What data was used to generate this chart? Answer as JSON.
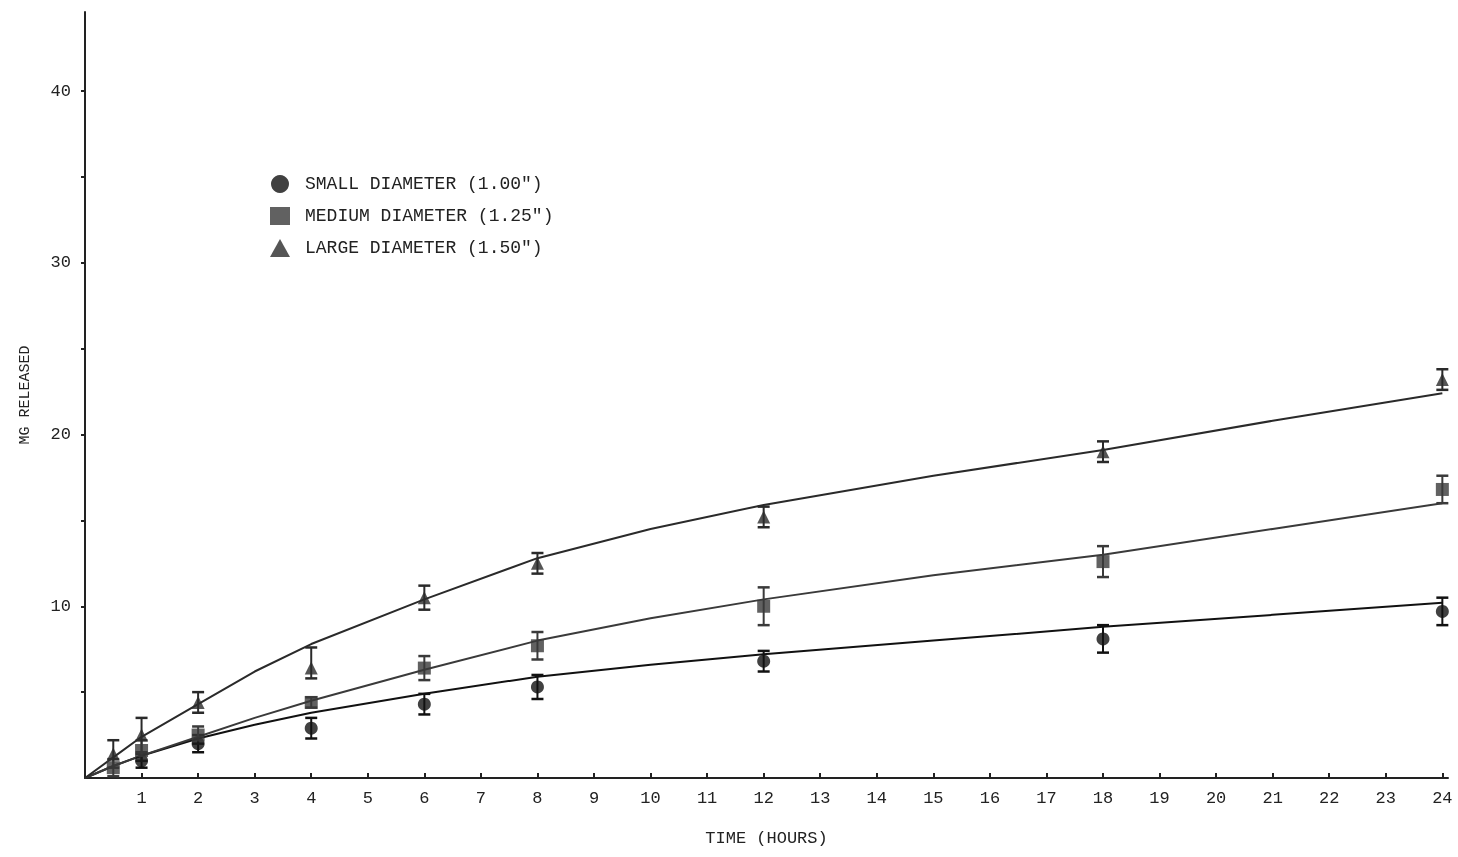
{
  "chart_data": {
    "type": "scatter",
    "xlabel": "TIME (HOURS)",
    "ylabel": "MG RELEASED",
    "x": [
      0.5,
      1,
      2,
      4,
      6,
      8,
      12,
      18,
      24
    ],
    "series": [
      {
        "name": "SMALL DIAMETER (1.00\")",
        "color": "#111111",
        "marker": "circle",
        "values": [
          null,
          1.0,
          2.0,
          2.9,
          4.3,
          5.3,
          6.8,
          8.1,
          9.7
        ],
        "errors": [
          null,
          0.4,
          0.5,
          0.6,
          0.6,
          0.7,
          0.6,
          0.8,
          0.8
        ]
      },
      {
        "name": "MEDIUM DIAMETER (1.25\")",
        "color": "#3a3a3a",
        "marker": "square",
        "values": [
          0.6,
          1.6,
          2.5,
          4.4,
          6.4,
          7.7,
          10.0,
          12.6,
          16.8
        ],
        "errors": [
          0.5,
          0.6,
          0.5,
          0.3,
          0.7,
          0.8,
          1.1,
          0.9,
          0.8
        ]
      },
      {
        "name": "LARGE DIAMETER (1.50\")",
        "color": "#2a2a2a",
        "marker": "triangle",
        "values": [
          1.4,
          2.5,
          4.4,
          6.4,
          10.5,
          12.5,
          15.2,
          19.0,
          23.2
        ],
        "errors": [
          0.8,
          1.0,
          0.6,
          [
            5.8,
            7.6
          ],
          0.7,
          0.6,
          0.6,
          0.6,
          0.6
        ]
      },
      {
        "type": "line",
        "color": "#111111",
        "marker": "none",
        "x": [
          0,
          0.5,
          1,
          2,
          3,
          4,
          6,
          8,
          10,
          12,
          15,
          18,
          21,
          24
        ],
        "values": [
          0,
          0.7,
          1.3,
          2.3,
          3.1,
          3.8,
          4.9,
          5.9,
          6.6,
          7.2,
          8.0,
          8.8,
          9.5,
          10.2
        ]
      },
      {
        "type": "line",
        "color": "#3a3a3a",
        "marker": "none",
        "x": [
          0,
          0.5,
          1,
          2,
          3,
          4,
          6,
          8,
          10,
          12,
          15,
          18,
          21,
          24
        ],
        "values": [
          0,
          0.7,
          1.3,
          2.4,
          3.5,
          4.5,
          6.3,
          8.0,
          9.3,
          10.4,
          11.8,
          13.0,
          14.5,
          16.0
        ]
      },
      {
        "type": "line",
        "color": "#2a2a2a",
        "marker": "none",
        "x": [
          0,
          0.5,
          1,
          2,
          3,
          4,
          6,
          8,
          10,
          12,
          15,
          18,
          21,
          24
        ],
        "values": [
          0,
          1.2,
          2.4,
          4.3,
          6.2,
          7.8,
          10.4,
          12.8,
          14.5,
          15.9,
          17.6,
          19.1,
          20.8,
          22.4
        ]
      }
    ],
    "xlim": [
      0,
      24.1
    ],
    "xticks": [
      1,
      2,
      3,
      4,
      5,
      6,
      7,
      8,
      9,
      10,
      11,
      12,
      13,
      14,
      15,
      16,
      17,
      18,
      19,
      20,
      21,
      22,
      23,
      24
    ],
    "ylim": [
      0,
      44.6
    ],
    "yticks": [
      {
        "value": 5,
        "label": null
      },
      10,
      {
        "value": 15,
        "label": null
      },
      20,
      {
        "value": 25,
        "label": null
      },
      30,
      {
        "value": 35,
        "label": null
      },
      40
    ],
    "grid": false,
    "legend": "top left"
  }
}
